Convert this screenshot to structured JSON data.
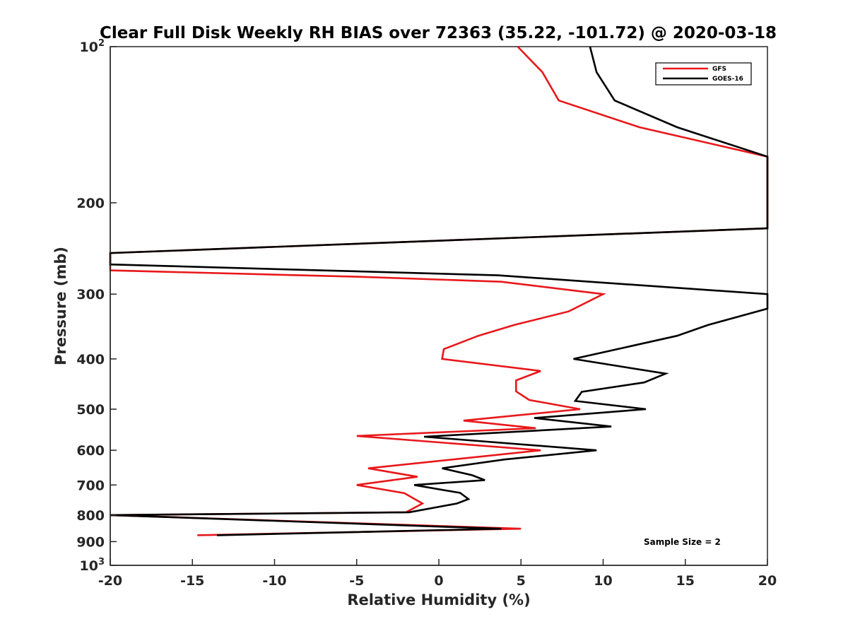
{
  "chart_data": {
    "type": "line",
    "title": "Clear Full Disk Weekly RH BIAS over 72363 (35.22, -101.72) @ 2020-03-18",
    "xlabel": "Relative Humidity (%)",
    "ylabel": "Pressure (mb)",
    "xlim": [
      -20,
      20
    ],
    "ylim": [
      100,
      1000
    ],
    "y_scale": "log",
    "y_reversed": true,
    "x_ticks": [
      "-20",
      "-15",
      "-10",
      "-5",
      "0",
      "5",
      "10",
      "15",
      "20"
    ],
    "y_ticks": [
      {
        "value": 100,
        "base": "10",
        "exp": "2"
      },
      {
        "value": 200,
        "label": "200"
      },
      {
        "value": 300,
        "label": "300"
      },
      {
        "value": 400,
        "label": "400"
      },
      {
        "value": 500,
        "label": "500"
      },
      {
        "value": 600,
        "label": "600"
      },
      {
        "value": 700,
        "label": "700"
      },
      {
        "value": 800,
        "label": "800"
      },
      {
        "value": 900,
        "label": "900"
      },
      {
        "value": 1000,
        "base": "10",
        "exp": "3"
      }
    ],
    "legend_position": "top-right",
    "annotation": "Sample Size = 2",
    "series": [
      {
        "name": "GFS",
        "color": "#e8181b",
        "points": [
          [
            4.8,
            100
          ],
          [
            6.3,
            112
          ],
          [
            7.3,
            127
          ],
          [
            12.2,
            143
          ],
          [
            20.0,
            163
          ],
          [
            20.0,
            224
          ],
          [
            -20.0,
            250
          ],
          [
            -20.0,
            270
          ],
          [
            -4.5,
            278
          ],
          [
            3.8,
            284
          ],
          [
            10.0,
            300
          ],
          [
            7.9,
            324
          ],
          [
            4.6,
            344
          ],
          [
            2.4,
            361
          ],
          [
            0.3,
            383
          ],
          [
            0.2,
            400
          ],
          [
            6.2,
            422
          ],
          [
            4.7,
            440
          ],
          [
            4.7,
            462
          ],
          [
            5.5,
            480
          ],
          [
            8.6,
            500
          ],
          [
            1.5,
            526
          ],
          [
            5.9,
            544
          ],
          [
            -5.0,
            563
          ],
          [
            6.2,
            600
          ],
          [
            -4.3,
            650
          ],
          [
            -1.3,
            675
          ],
          [
            -5.0,
            700
          ],
          [
            -2.1,
            726
          ],
          [
            -1.0,
            760
          ],
          [
            -2.0,
            790
          ],
          [
            -20.0,
            800
          ],
          [
            5.0,
            850
          ],
          [
            -14.7,
            875
          ]
        ]
      },
      {
        "name": "GOES-16",
        "color": "#000000",
        "points": [
          [
            9.2,
            100
          ],
          [
            9.6,
            112
          ],
          [
            10.7,
            127
          ],
          [
            14.5,
            143
          ],
          [
            20.0,
            163
          ],
          [
            20.0,
            224
          ],
          [
            -20.0,
            250
          ],
          [
            -20.0,
            263
          ],
          [
            3.6,
            276
          ],
          [
            20.0,
            300
          ],
          [
            20.0,
            320
          ],
          [
            16.4,
            344
          ],
          [
            14.5,
            361
          ],
          [
            8.2,
            400
          ],
          [
            13.8,
            427
          ],
          [
            12.5,
            444
          ],
          [
            8.7,
            463
          ],
          [
            8.3,
            482
          ],
          [
            12.6,
            500
          ],
          [
            5.8,
            520
          ],
          [
            10.5,
            540
          ],
          [
            -0.9,
            565
          ],
          [
            9.6,
            600
          ],
          [
            4.0,
            625
          ],
          [
            0.2,
            650
          ],
          [
            2.0,
            670
          ],
          [
            2.8,
            685
          ],
          [
            -1.5,
            700
          ],
          [
            1.3,
            725
          ],
          [
            1.8,
            745
          ],
          [
            1.1,
            760
          ],
          [
            -1.8,
            790
          ],
          [
            -20.0,
            800
          ],
          [
            3.8,
            850
          ],
          [
            -13.5,
            875
          ]
        ]
      }
    ]
  }
}
